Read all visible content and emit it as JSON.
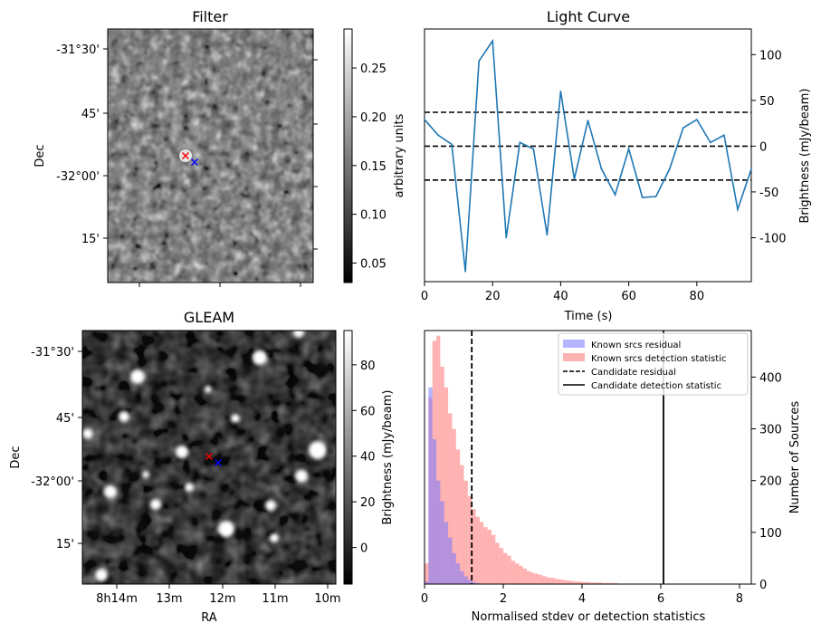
{
  "chart_data": [
    {
      "type": "image",
      "title": "Filter",
      "xlabel": "",
      "ylabel": "Dec",
      "y_ticks": [
        "-31°30'",
        "45'",
        "-32°00'",
        "15'"
      ],
      "colorbar": {
        "label": "arbitrary units",
        "range": [
          0.03,
          0.29
        ],
        "ticks": [
          0.05,
          0.1,
          0.15,
          0.2,
          0.25
        ],
        "tick_labels": [
          "0.05",
          "0.10",
          "0.15",
          "0.20",
          "0.25"
        ]
      },
      "colormap": "gray",
      "markers": [
        {
          "symbol": "x",
          "color": "#ff0000"
        },
        {
          "symbol": "x",
          "color": "#0000ff"
        }
      ]
    },
    {
      "type": "line",
      "title": "Light Curve",
      "xlabel": "Time (s)",
      "ylabel": "Brightness (mJy/beam)",
      "xlim": [
        0,
        96
      ],
      "ylim": [
        -148,
        128
      ],
      "x_ticks": [
        0,
        20,
        40,
        60,
        80
      ],
      "y_ticks": [
        -100,
        -50,
        0,
        50,
        100
      ],
      "x": [
        0,
        4,
        8,
        12,
        16,
        20,
        24,
        28,
        32,
        36,
        40,
        44,
        48,
        52,
        56,
        60,
        64,
        68,
        72,
        76,
        80,
        84,
        88,
        92,
        96
      ],
      "values": [
        29,
        12,
        2,
        -137,
        93,
        115,
        -100,
        4,
        -3,
        -97,
        60,
        -36,
        28,
        -25,
        -53,
        -3,
        -56,
        -55,
        -25,
        20,
        29,
        4,
        12,
        -69,
        -25
      ],
      "color": "#1f77b4",
      "hlines": [
        {
          "y": 37,
          "style": "dashed"
        },
        {
          "y": 0,
          "style": "dashed"
        },
        {
          "y": -37,
          "style": "dashed"
        }
      ]
    },
    {
      "type": "image",
      "title": "GLEAM",
      "xlabel": "RA",
      "ylabel": "Dec",
      "x_ticks": [
        "8h14m",
        "13m",
        "12m",
        "11m",
        "10m"
      ],
      "y_ticks": [
        "-31°30'",
        "45'",
        "-32°00'",
        "15'"
      ],
      "colorbar": {
        "label": "Brightness (mJy/beam)",
        "range": [
          -16,
          95
        ],
        "ticks": [
          0,
          20,
          40,
          60,
          80
        ],
        "tick_labels": [
          "0",
          "20",
          "40",
          "60",
          "80"
        ]
      },
      "colormap": "gray",
      "markers": [
        {
          "symbol": "x",
          "color": "#ff0000"
        },
        {
          "symbol": "x",
          "color": "#0000ff"
        }
      ]
    },
    {
      "type": "histogram",
      "xlabel": "Normalised stdev or detection statistics",
      "ylabel": "Number of Sources",
      "xlim": [
        0,
        8.3
      ],
      "ylim": [
        0,
        490
      ],
      "x_ticks": [
        0,
        2,
        4,
        6,
        8
      ],
      "y_ticks": [
        0,
        100,
        200,
        300,
        400
      ],
      "bin_width": 0.1,
      "series": [
        {
          "name": "Known srcs residual",
          "color": "#7777ff",
          "alpha": 0.55,
          "bins_start": 0.0,
          "values": [
            5,
            380,
            280,
            200,
            160,
            120,
            90,
            60,
            40,
            25,
            15,
            8,
            4,
            2
          ]
        },
        {
          "name": "Known srcs detection statistic",
          "color": "#ff6666",
          "alpha": 0.5,
          "bins_start": 0.0,
          "values": [
            40,
            360,
            470,
            480,
            420,
            380,
            330,
            300,
            260,
            230,
            200,
            170,
            145,
            130,
            120,
            110,
            105,
            95,
            80,
            70,
            60,
            55,
            45,
            40,
            35,
            30,
            25,
            22,
            20,
            18,
            15,
            13,
            12,
            10,
            9,
            8,
            7,
            6,
            5,
            5,
            4,
            4,
            3,
            3,
            3,
            2,
            2,
            2,
            2,
            1,
            1,
            1,
            1,
            1,
            1,
            1,
            1,
            1,
            1,
            1,
            1,
            1,
            1,
            1,
            1,
            1,
            1,
            1,
            1,
            1,
            1,
            1,
            1,
            1,
            1,
            1,
            1,
            1,
            1,
            1
          ]
        },
        {
          "name": "Candidate residual",
          "type": "vline",
          "x": 1.2,
          "style": "dashed"
        },
        {
          "name": "Candidate detection statistic",
          "type": "vline",
          "x": 6.07,
          "style": "solid"
        }
      ],
      "legend": "top-right"
    }
  ]
}
